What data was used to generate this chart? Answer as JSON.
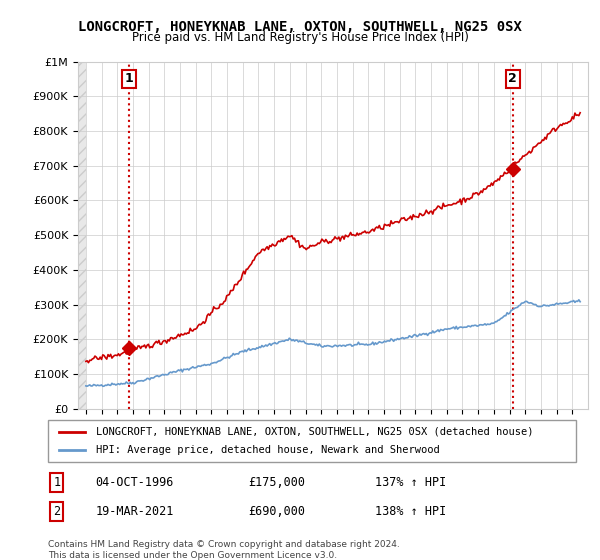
{
  "title": "LONGCROFT, HONEYKNAB LANE, OXTON, SOUTHWELL, NG25 0SX",
  "subtitle": "Price paid vs. HM Land Registry's House Price Index (HPI)",
  "ylabel_ticks": [
    "£0",
    "£100K",
    "£200K",
    "£300K",
    "£400K",
    "£500K",
    "£600K",
    "£700K",
    "£800K",
    "£900K",
    "£1M"
  ],
  "ytick_values": [
    0,
    100000,
    200000,
    300000,
    400000,
    500000,
    600000,
    700000,
    800000,
    900000,
    1000000
  ],
  "xlim": [
    1993.5,
    2026.0
  ],
  "ylim": [
    0,
    1000000
  ],
  "hpi_color": "#6699cc",
  "price_color": "#cc0000",
  "marker_color": "#cc0000",
  "sale1_x": 1996.76,
  "sale1_y": 175000,
  "sale2_x": 2021.21,
  "sale2_y": 690000,
  "legend_price_label": "LONGCROFT, HONEYKNAB LANE, OXTON, SOUTHWELL, NG25 0SX (detached house)",
  "legend_hpi_label": "HPI: Average price, detached house, Newark and Sherwood",
  "annotation1_date": "04-OCT-1996",
  "annotation1_price": "£175,000",
  "annotation1_hpi": "137% ↑ HPI",
  "annotation2_date": "19-MAR-2021",
  "annotation2_price": "£690,000",
  "annotation2_hpi": "138% ↑ HPI",
  "footer": "Contains HM Land Registry data © Crown copyright and database right 2024.\nThis data is licensed under the Open Government Licence v3.0.",
  "background_hatch_color": "#e8e8e8",
  "grid_color": "#cccccc"
}
